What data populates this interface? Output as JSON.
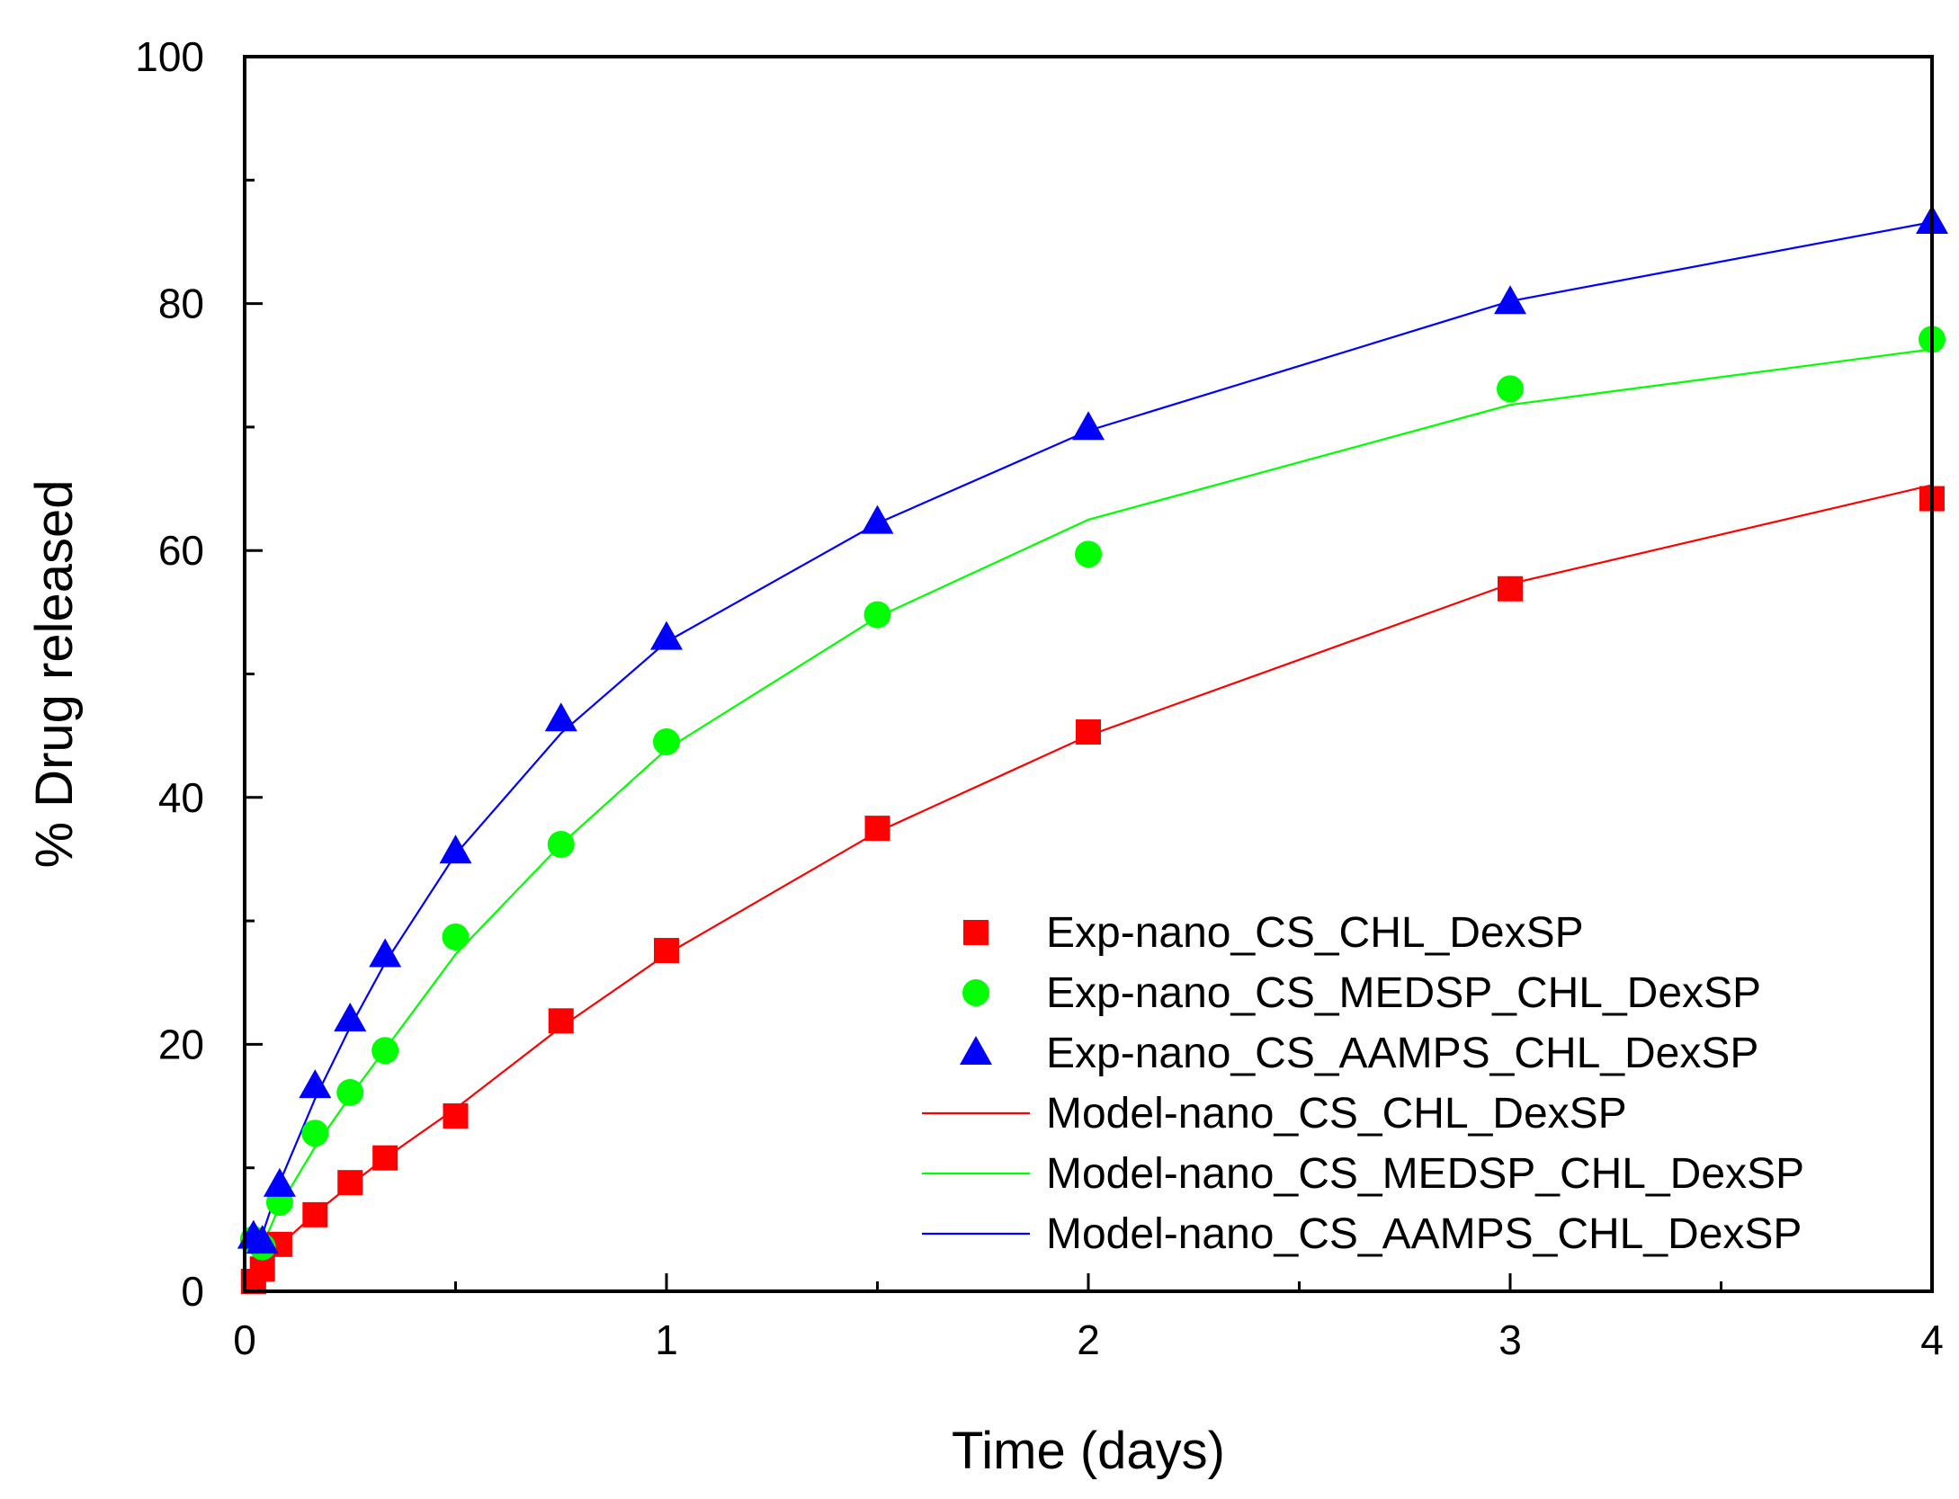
{
  "chart_data": {
    "type": "scatter",
    "xlabel": "Time (days)",
    "ylabel": "% Drug released",
    "xlim": [
      0,
      4
    ],
    "ylim": [
      0,
      100
    ],
    "xticks": [
      "0",
      "1",
      "2",
      "3",
      "4"
    ],
    "yticks": [
      "0",
      "20",
      "40",
      "60",
      "80",
      "100"
    ],
    "grid": false,
    "legend_position": "bottom-right",
    "series": [
      {
        "name": "Exp-nano_CS_CHL_DexSP",
        "kind": "markers",
        "marker": "square",
        "color": "#ff0000",
        "x": [
          0.021,
          0.042,
          0.083,
          0.167,
          0.25,
          0.333,
          0.5,
          0.75,
          1,
          1.5,
          2,
          3,
          4
        ],
        "y": [
          0.8,
          1.8,
          3.8,
          6.2,
          8.8,
          10.8,
          14.2,
          21.9,
          27.6,
          37.5,
          45.3,
          56.9,
          64.2
        ]
      },
      {
        "name": "Exp-nano_CS_MEDSP_CHL_DexSP",
        "kind": "markers",
        "marker": "circle",
        "color": "#00ff00",
        "x": [
          0.021,
          0.042,
          0.083,
          0.167,
          0.25,
          0.333,
          0.5,
          0.75,
          1,
          1.5,
          2,
          3,
          4
        ],
        "y": [
          4.2,
          3.6,
          7.2,
          12.8,
          16.1,
          19.5,
          28.7,
          36.2,
          44.5,
          54.8,
          59.7,
          73.1,
          77.1
        ]
      },
      {
        "name": "Exp-nano_CS_AAMPS_CHL_DexSP",
        "kind": "markers",
        "marker": "triangle",
        "color": "#0000ff",
        "x": [
          0.021,
          0.042,
          0.083,
          0.167,
          0.25,
          0.333,
          0.5,
          0.75,
          1,
          1.5,
          2,
          3,
          4
        ],
        "y": [
          4.4,
          4.0,
          8.6,
          16.6,
          22.0,
          27.2,
          35.6,
          46.3,
          52.9,
          62.3,
          69.9,
          80.1,
          86.6
        ]
      },
      {
        "name": "Model-nano_CS_CHL_DexSP",
        "kind": "line",
        "color": "#ff0000",
        "x": [
          0,
          0.042,
          0.083,
          0.167,
          0.25,
          0.333,
          0.5,
          0.75,
          1,
          1.5,
          2,
          3,
          4
        ],
        "y": [
          0,
          1.9,
          3.7,
          6.3,
          8.6,
          10.8,
          14.8,
          21.4,
          27.3,
          37.2,
          45.0,
          57.3,
          65.3
        ]
      },
      {
        "name": "Model-nano_CS_MEDSP_CHL_DexSP",
        "kind": "line",
        "color": "#00ff00",
        "x": [
          0,
          0.042,
          0.083,
          0.167,
          0.25,
          0.333,
          0.5,
          0.75,
          1,
          1.5,
          2,
          3,
          4
        ],
        "y": [
          0,
          3.7,
          6.9,
          11.7,
          15.8,
          19.6,
          27.3,
          36.2,
          43.9,
          54.6,
          62.5,
          71.8,
          76.3
        ]
      },
      {
        "name": "Model-nano_CS_AAMPS_CHL_DexSP",
        "kind": "line",
        "color": "#0000ff",
        "x": [
          0,
          0.042,
          0.083,
          0.167,
          0.25,
          0.333,
          0.5,
          0.75,
          1,
          1.5,
          2,
          3,
          4
        ],
        "y": [
          0,
          4.6,
          8.8,
          15.6,
          21.4,
          26.6,
          35.4,
          45.2,
          52.6,
          62.2,
          69.7,
          80.2,
          86.6
        ]
      }
    ]
  }
}
